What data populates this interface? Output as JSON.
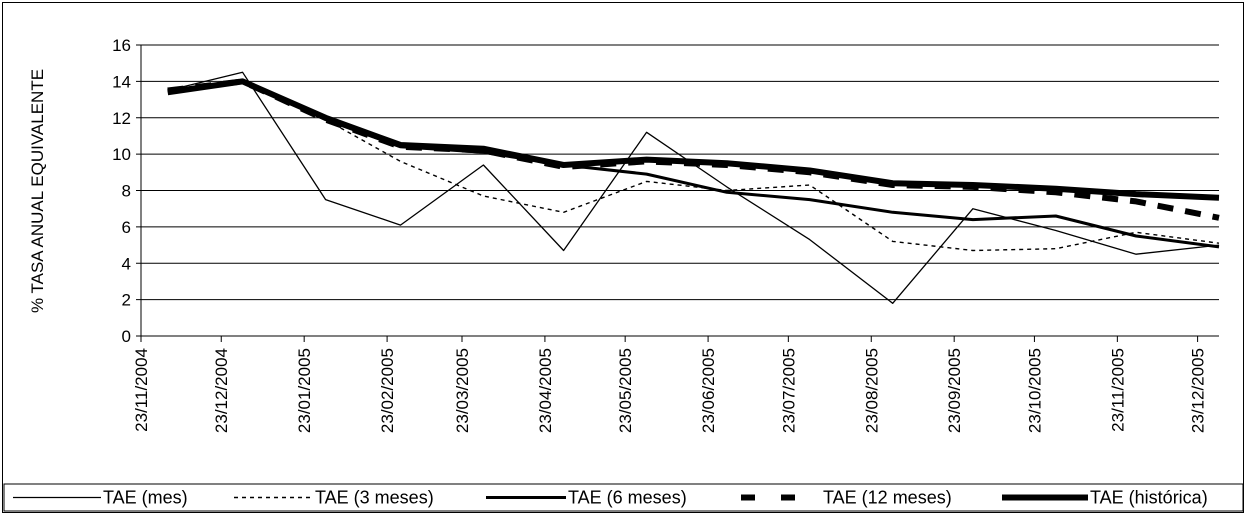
{
  "chart_data": {
    "type": "line",
    "ylabel": "% TASA ANUAL EQUIVALENTE",
    "xlabel": "",
    "ylim": [
      0,
      16
    ],
    "y_ticks": [
      0,
      2,
      4,
      6,
      8,
      10,
      12,
      14,
      16
    ],
    "x_tick_labels": [
      "23/11/2004",
      "23/12/2004",
      "23/01/2005",
      "23/02/2005",
      "23/03/2005",
      "23/04/2005",
      "23/05/2005",
      "23/06/2005",
      "23/07/2005",
      "23/08/2005",
      "23/09/2005",
      "23/10/2005",
      "23/11/2005",
      "23/12/2005"
    ],
    "x_range": [
      "23/11/2004",
      "31/12/2005"
    ],
    "grid": "horizontal",
    "legend_position": "bottom",
    "series": [
      {
        "name": "TAE (mes)",
        "style": "thin-solid",
        "points": [
          [
            "03/12/2004",
            13.5
          ],
          [
            "31/12/2004",
            14.5
          ],
          [
            "31/01/2005",
            7.5
          ],
          [
            "28/02/2005",
            6.1
          ],
          [
            "31/03/2005",
            9.4
          ],
          [
            "30/04/2005",
            4.7
          ],
          [
            "31/05/2005",
            11.2
          ],
          [
            "30/06/2005",
            8.2
          ],
          [
            "31/07/2005",
            5.3
          ],
          [
            "31/08/2005",
            1.8
          ],
          [
            "30/09/2005",
            7.0
          ],
          [
            "31/10/2005",
            5.8
          ],
          [
            "30/11/2005",
            4.5
          ],
          [
            "31/12/2005",
            5.0
          ]
        ]
      },
      {
        "name": "TAE (3 meses)",
        "style": "dotted",
        "points": [
          [
            "03/12/2004",
            13.5
          ],
          [
            "31/12/2004",
            14.0
          ],
          [
            "31/01/2005",
            11.9
          ],
          [
            "28/02/2005",
            9.6
          ],
          [
            "31/03/2005",
            7.7
          ],
          [
            "30/04/2005",
            6.8
          ],
          [
            "31/05/2005",
            8.5
          ],
          [
            "30/06/2005",
            8.0
          ],
          [
            "31/07/2005",
            8.3
          ],
          [
            "31/08/2005",
            5.2
          ],
          [
            "30/09/2005",
            4.7
          ],
          [
            "31/10/2005",
            4.8
          ],
          [
            "30/11/2005",
            5.7
          ],
          [
            "31/12/2005",
            5.1
          ]
        ]
      },
      {
        "name": "TAE (6 meses)",
        "style": "medium-solid",
        "points": [
          [
            "03/12/2004",
            13.5
          ],
          [
            "31/12/2004",
            14.0
          ],
          [
            "31/01/2005",
            11.9
          ],
          [
            "28/02/2005",
            10.4
          ],
          [
            "31/03/2005",
            10.1
          ],
          [
            "30/04/2005",
            9.4
          ],
          [
            "31/05/2005",
            8.9
          ],
          [
            "30/06/2005",
            7.9
          ],
          [
            "31/07/2005",
            7.5
          ],
          [
            "31/08/2005",
            6.8
          ],
          [
            "30/09/2005",
            6.4
          ],
          [
            "31/10/2005",
            6.6
          ],
          [
            "30/11/2005",
            5.5
          ],
          [
            "31/12/2005",
            4.9
          ]
        ]
      },
      {
        "name": "TAE (12 meses)",
        "style": "thick-dashed",
        "points": [
          [
            "03/12/2004",
            13.5
          ],
          [
            "31/12/2004",
            14.0
          ],
          [
            "31/01/2005",
            11.9
          ],
          [
            "28/02/2005",
            10.4
          ],
          [
            "31/03/2005",
            10.2
          ],
          [
            "30/04/2005",
            9.3
          ],
          [
            "31/05/2005",
            9.6
          ],
          [
            "30/06/2005",
            9.4
          ],
          [
            "31/07/2005",
            9.0
          ],
          [
            "31/08/2005",
            8.3
          ],
          [
            "30/09/2005",
            8.2
          ],
          [
            "31/10/2005",
            7.9
          ],
          [
            "30/11/2005",
            7.4
          ],
          [
            "31/12/2005",
            6.5
          ]
        ]
      },
      {
        "name": "TAE (histórica)",
        "style": "thick-solid",
        "points": [
          [
            "03/12/2004",
            13.4
          ],
          [
            "31/12/2004",
            14.0
          ],
          [
            "31/01/2005",
            12.0
          ],
          [
            "28/02/2005",
            10.5
          ],
          [
            "31/03/2005",
            10.3
          ],
          [
            "30/04/2005",
            9.4
          ],
          [
            "31/05/2005",
            9.7
          ],
          [
            "30/06/2005",
            9.5
          ],
          [
            "31/07/2005",
            9.1
          ],
          [
            "31/08/2005",
            8.4
          ],
          [
            "30/09/2005",
            8.3
          ],
          [
            "31/10/2005",
            8.1
          ],
          [
            "30/11/2005",
            7.8
          ],
          [
            "31/12/2005",
            7.6
          ]
        ]
      }
    ]
  }
}
